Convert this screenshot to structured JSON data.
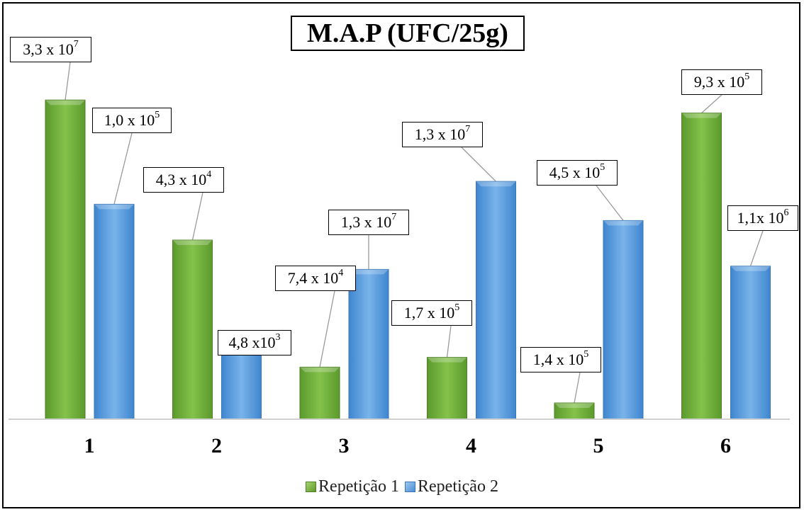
{
  "chart_data": {
    "type": "bar",
    "title": "M.A.P (UFC/25g)",
    "categories": [
      "1",
      "2",
      "3",
      "4",
      "5",
      "6"
    ],
    "series": [
      {
        "name": "Repetição 1",
        "color": "#6fae36",
        "values": [
          33000000.0,
          43000.0,
          74000.0,
          170000.0,
          140000.0,
          930000.0
        ],
        "labels": [
          {
            "mantissa": "3,3 x 10",
            "exp": "7"
          },
          {
            "mantissa": "4,3 x 10",
            "exp": "4"
          },
          {
            "mantissa": "7,4 x 10",
            "exp": "4"
          },
          {
            "mantissa": "1,7 x 10",
            "exp": "5"
          },
          {
            "mantissa": "1,4 x 10",
            "exp": "5"
          },
          {
            "mantissa": "9,3 x 10",
            "exp": "5"
          }
        ],
        "drawn_level": [
          0.98,
          0.55,
          0.16,
          0.19,
          0.05,
          0.94
        ]
      },
      {
        "name": "Repetição 2",
        "color": "#5b9bd5",
        "values": [
          100000.0,
          4800.0,
          13000000.0,
          13000000.0,
          450000.0,
          1100000.0
        ],
        "labels": [
          {
            "mantissa": "1,0 x 10",
            "exp": "5"
          },
          {
            "mantissa": "4,8 x10",
            "exp": "3"
          },
          {
            "mantissa": "1,3 x 10",
            "exp": "7"
          },
          {
            "mantissa": "1,3 x 10",
            "exp": "7"
          },
          {
            "mantissa": "4,5 x 10",
            "exp": "5"
          },
          {
            "mantissa": "1,1x 10",
            "exp": "6"
          }
        ],
        "drawn_level": [
          0.66,
          0.23,
          0.46,
          0.73,
          0.61,
          0.47
        ]
      }
    ],
    "xlabel": "",
    "ylabel": "",
    "grid": false,
    "legend": "bottom"
  }
}
